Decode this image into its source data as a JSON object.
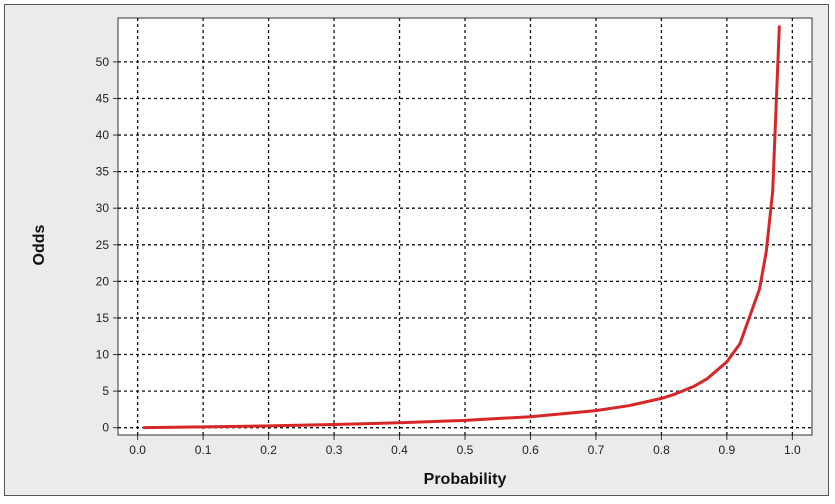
{
  "chart_data": {
    "type": "line",
    "title": "",
    "xlabel": "Probability",
    "ylabel": "Odds",
    "xlim": [
      -0.03,
      1.03
    ],
    "ylim": [
      -1,
      56
    ],
    "grid": true,
    "grid_style": "dashed",
    "background": "#ebebeb",
    "plot_background": "#ffffff",
    "x_ticks": [
      0.0,
      0.1,
      0.2,
      0.3,
      0.4,
      0.5,
      0.6,
      0.7,
      0.8,
      0.9,
      1.0
    ],
    "x_tick_labels": [
      "0.0",
      "0.1",
      "0.2",
      "0.3",
      "0.4",
      "0.5",
      "0.6",
      "0.7",
      "0.8",
      "0.9",
      "1.0"
    ],
    "y_ticks": [
      0,
      5,
      10,
      15,
      20,
      25,
      30,
      35,
      40,
      45,
      50
    ],
    "y_tick_labels": [
      "0",
      "5",
      "10",
      "15",
      "20",
      "25",
      "30",
      "35",
      "40",
      "45",
      "50"
    ],
    "series": [
      {
        "color": "#d62728",
        "x": [
          0.01,
          0.1,
          0.2,
          0.3,
          0.4,
          0.5,
          0.6,
          0.7,
          0.75,
          0.8,
          0.82,
          0.85,
          0.87,
          0.9,
          0.92,
          0.95,
          0.96,
          0.97,
          0.98
        ],
        "y": [
          0.01,
          0.11,
          0.25,
          0.43,
          0.67,
          1.0,
          1.5,
          2.33,
          3.0,
          4.0,
          4.56,
          5.67,
          6.69,
          9.0,
          11.5,
          19.0,
          24.0,
          32.3,
          54.8
        ]
      }
    ]
  }
}
